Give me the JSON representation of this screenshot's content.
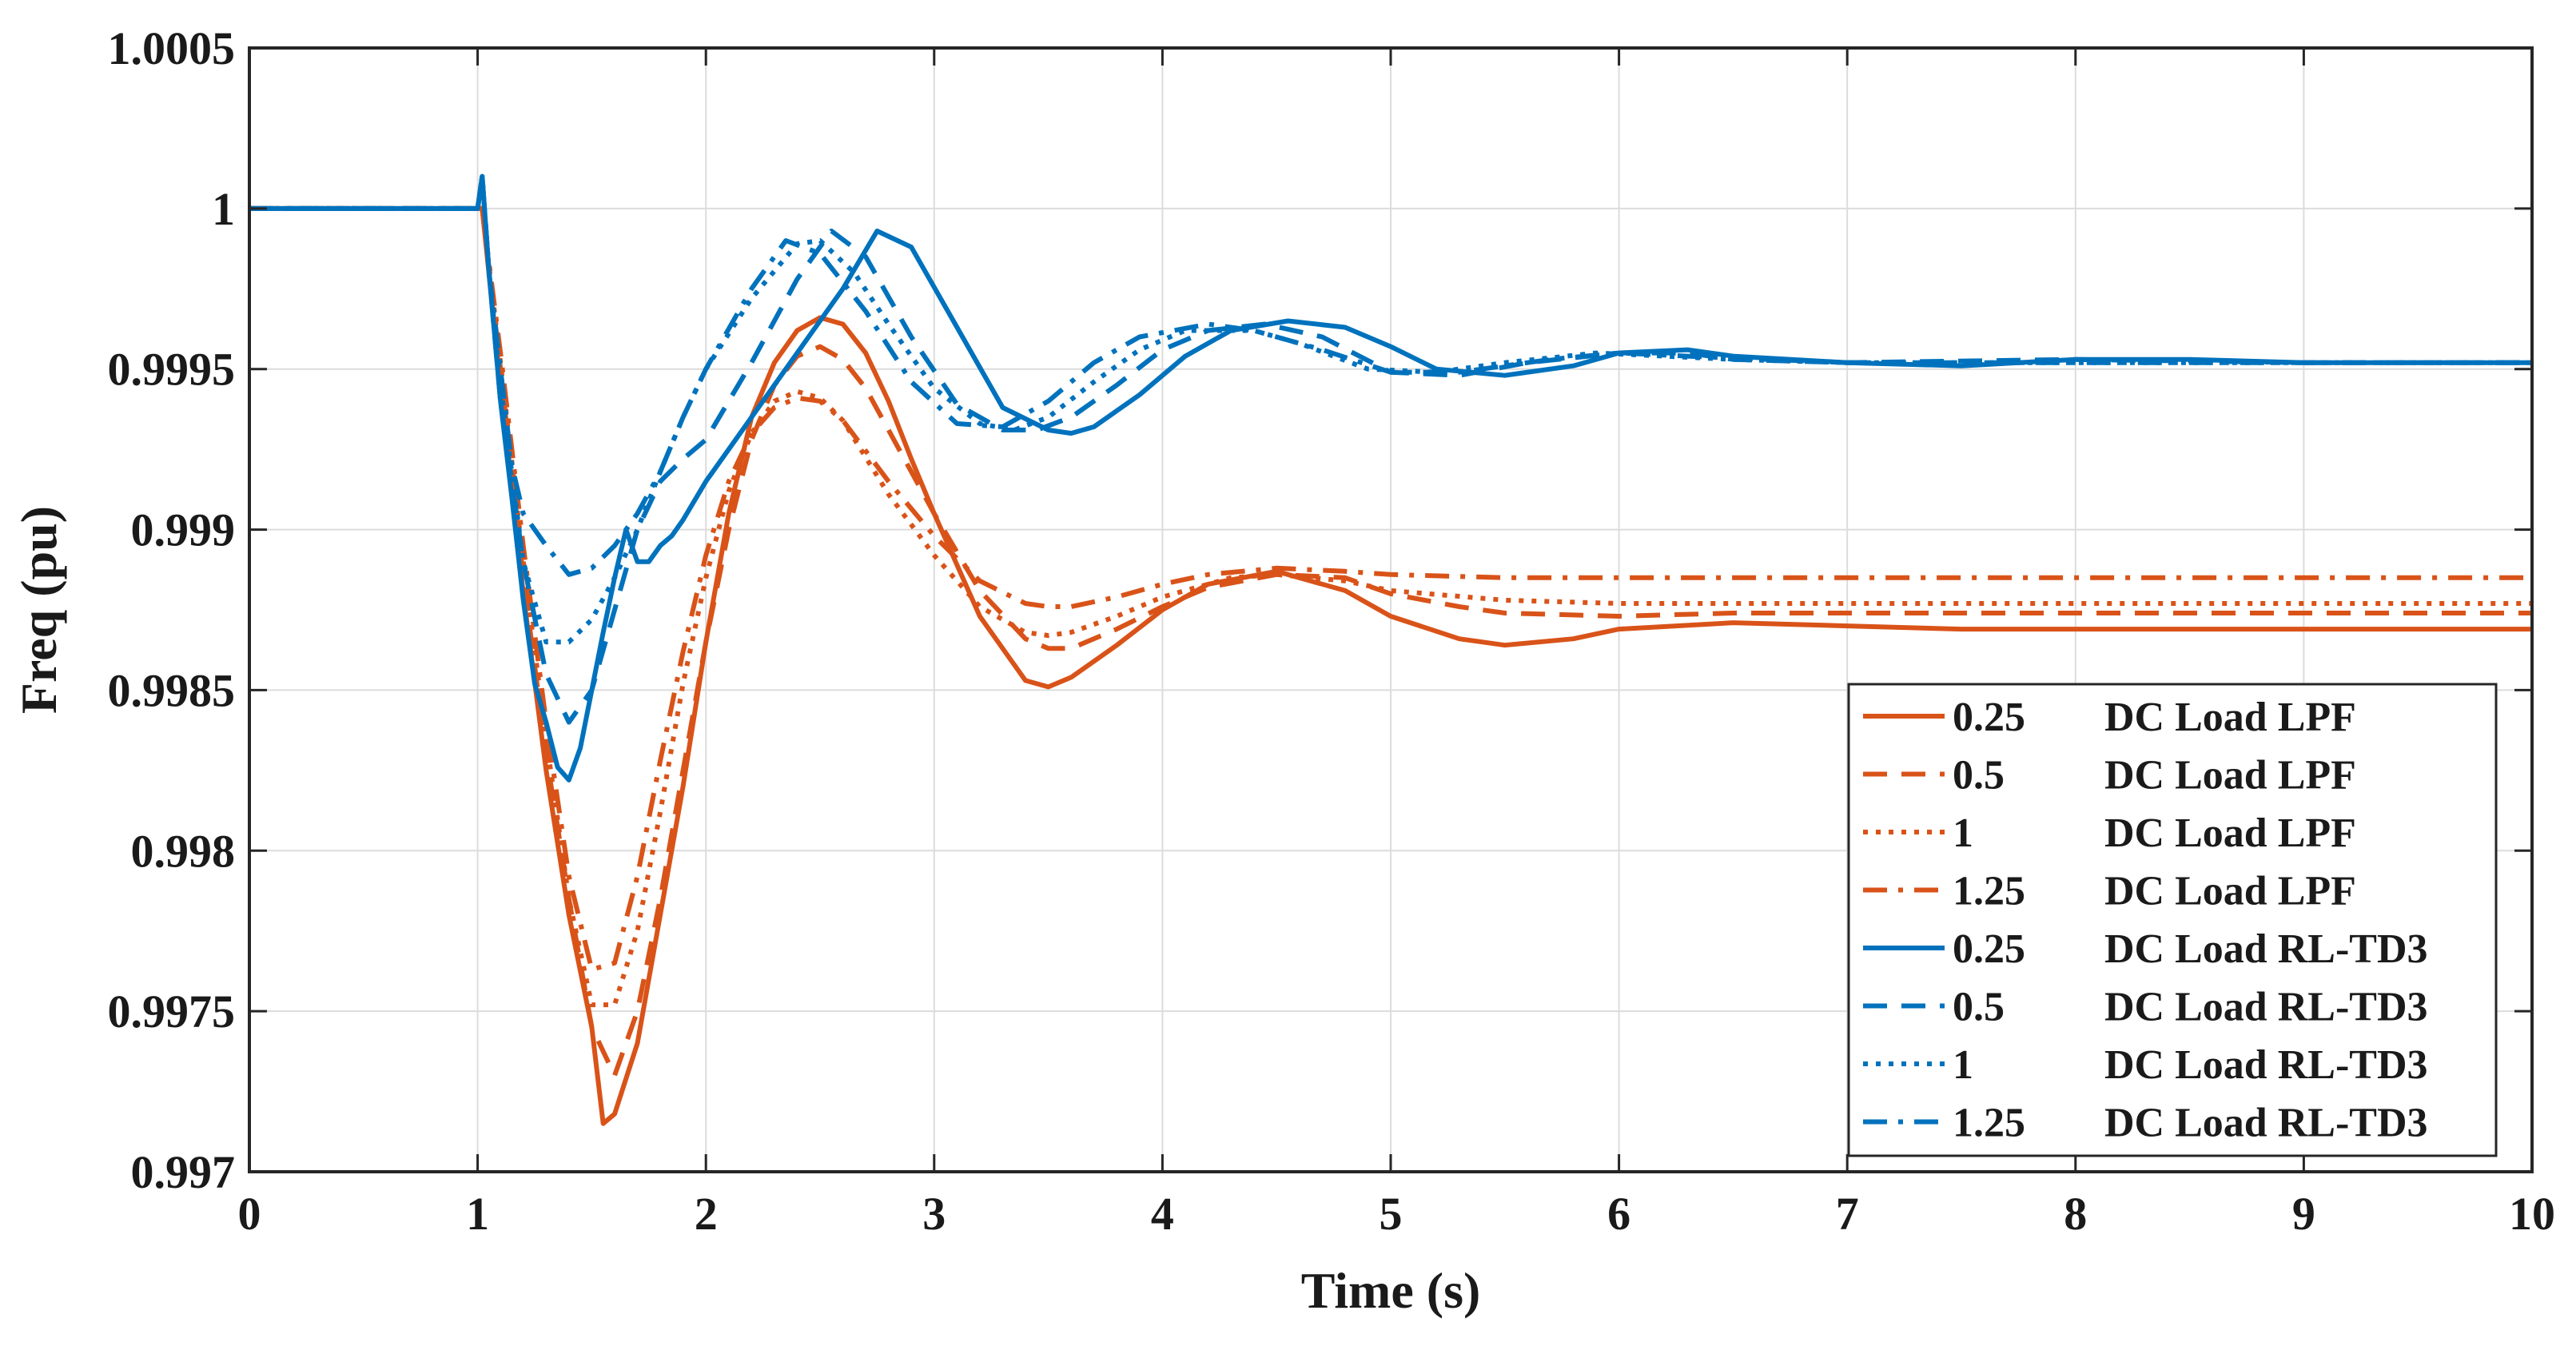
{
  "chart_data": {
    "type": "line",
    "title": "",
    "xlabel": "Time (s)",
    "ylabel": "Freq (pu)",
    "xlim": [
      0,
      10
    ],
    "ylim": [
      0.997,
      1.0005
    ],
    "grid": true,
    "legend_position": "bottom-right",
    "xticks": [
      0,
      1,
      2,
      3,
      4,
      5,
      6,
      7,
      8,
      9,
      10
    ],
    "xtick_labels": [
      "0",
      "1",
      "2",
      "3",
      "4",
      "5",
      "6",
      "7",
      "8",
      "9",
      "10"
    ],
    "yticks": [
      0.997,
      0.9975,
      0.998,
      0.9985,
      0.999,
      0.9995,
      1.0,
      1.0005
    ],
    "ytick_labels": [
      "0.997",
      "0.9975",
      "0.998",
      "0.9985",
      "0.999",
      "0.9995",
      "1",
      "1.0005"
    ],
    "colors": {
      "lpf": "#D95319",
      "rltd3": "#0072BD",
      "axis": "#262626",
      "grid": "#dcdcdc"
    },
    "series": [
      {
        "name": "0.25 DC Load LPF",
        "gain": "0.25",
        "label": "DC Load LPF",
        "style": "solid",
        "color": "#D95319",
        "x": [
          0,
          1.0,
          1.02,
          1.1,
          1.2,
          1.3,
          1.4,
          1.5,
          1.55,
          1.6,
          1.7,
          1.8,
          1.9,
          2.0,
          2.1,
          2.2,
          2.3,
          2.4,
          2.5,
          2.6,
          2.7,
          2.8,
          2.9,
          3.0,
          3.2,
          3.4,
          3.5,
          3.6,
          3.8,
          4.0,
          4.2,
          4.5,
          4.8,
          5.0,
          5.3,
          5.5,
          5.8,
          6.0,
          6.5,
          7.0,
          7.5,
          8.0,
          9.0,
          10.0
        ],
        "y": [
          1.0,
          1.0,
          1.0,
          0.99945,
          0.9988,
          0.99825,
          0.9978,
          0.99745,
          0.99715,
          0.99718,
          0.9974,
          0.9978,
          0.9982,
          0.99865,
          0.99905,
          0.99935,
          0.99952,
          0.99962,
          0.99966,
          0.99964,
          0.99955,
          0.9994,
          0.99922,
          0.99905,
          0.99873,
          0.99853,
          0.99851,
          0.99854,
          0.99864,
          0.99875,
          0.99883,
          0.99887,
          0.99881,
          0.99873,
          0.99866,
          0.99864,
          0.99866,
          0.99869,
          0.99871,
          0.9987,
          0.99869,
          0.99869,
          0.99869,
          0.99869
        ]
      },
      {
        "name": "0.5 DC Load LPF",
        "gain": "0.5",
        "label": "DC Load LPF",
        "style": "dashed",
        "color": "#D95319",
        "x": [
          0,
          1.0,
          1.02,
          1.1,
          1.2,
          1.3,
          1.4,
          1.5,
          1.6,
          1.7,
          1.8,
          1.9,
          2.0,
          2.1,
          2.2,
          2.3,
          2.4,
          2.5,
          2.6,
          2.7,
          2.8,
          3.0,
          3.2,
          3.4,
          3.5,
          3.6,
          3.8,
          4.0,
          4.2,
          4.5,
          4.8,
          5.0,
          5.3,
          5.5,
          6.0,
          6.5,
          7.0,
          8.0,
          9.0,
          10.0
        ],
        "y": [
          1.0,
          1.0,
          1.0,
          0.9995,
          0.99885,
          0.9983,
          0.99785,
          0.99745,
          0.9973,
          0.9975,
          0.99785,
          0.99825,
          0.99865,
          0.999,
          0.99928,
          0.99945,
          0.99954,
          0.99957,
          0.99953,
          0.99944,
          0.99931,
          0.99905,
          0.99881,
          0.99866,
          0.99863,
          0.99863,
          0.99869,
          0.99876,
          0.99882,
          0.99886,
          0.99885,
          0.9988,
          0.99876,
          0.99874,
          0.99873,
          0.99874,
          0.99874,
          0.99874,
          0.99874,
          0.99874
        ]
      },
      {
        "name": "1 DC Load LPF",
        "gain": "1",
        "label": "DC Load LPF",
        "style": "dotted",
        "color": "#D95319",
        "x": [
          0,
          1.0,
          1.02,
          1.1,
          1.2,
          1.3,
          1.4,
          1.5,
          1.6,
          1.7,
          1.8,
          1.9,
          2.0,
          2.1,
          2.2,
          2.3,
          2.4,
          2.5,
          2.6,
          2.8,
          3.0,
          3.2,
          3.4,
          3.5,
          3.6,
          3.8,
          4.0,
          4.3,
          4.5,
          4.8,
          5.0,
          5.5,
          6.0,
          7.0,
          8.0,
          9.0,
          10.0
        ],
        "y": [
          1.0,
          1.0,
          1.0,
          0.99952,
          0.9989,
          0.99835,
          0.99785,
          0.99752,
          0.99752,
          0.99775,
          0.99812,
          0.99852,
          0.99885,
          0.99912,
          0.9993,
          0.9994,
          0.99943,
          0.99941,
          0.99934,
          0.99911,
          0.99892,
          0.99876,
          0.99868,
          0.99867,
          0.99868,
          0.99873,
          0.99879,
          0.99885,
          0.99886,
          0.99884,
          0.99881,
          0.99878,
          0.99877,
          0.99877,
          0.99877,
          0.99877,
          0.99877
        ]
      },
      {
        "name": "1.25 DC Load LPF",
        "gain": "1.25",
        "label": "DC Load LPF",
        "style": "dashdot",
        "color": "#D95319",
        "x": [
          0,
          1.0,
          1.02,
          1.1,
          1.2,
          1.3,
          1.4,
          1.5,
          1.6,
          1.7,
          1.8,
          1.9,
          2.0,
          2.1,
          2.2,
          2.3,
          2.4,
          2.5,
          2.6,
          2.8,
          3.0,
          3.2,
          3.4,
          3.5,
          3.6,
          3.8,
          4.0,
          4.2,
          4.5,
          4.8,
          5.0,
          5.5,
          6.0,
          7.0,
          8.0,
          9.0,
          10.0
        ],
        "y": [
          1.0,
          1.0,
          1.0,
          0.99955,
          0.99895,
          0.9984,
          0.99792,
          0.99763,
          0.99765,
          0.99792,
          0.99828,
          0.99862,
          0.99892,
          0.99915,
          0.9993,
          0.99938,
          0.99941,
          0.9994,
          0.99934,
          0.99915,
          0.99898,
          0.99884,
          0.99877,
          0.99876,
          0.99876,
          0.99879,
          0.99883,
          0.99886,
          0.99888,
          0.99887,
          0.99886,
          0.99885,
          0.99885,
          0.99885,
          0.99885,
          0.99885,
          0.99885
        ]
      },
      {
        "name": "0.25 DC Load RL-TD3",
        "gain": "0.25",
        "label": "DC Load RL-TD3",
        "style": "solid",
        "color": "#0072BD",
        "x": [
          0,
          1.0,
          1.02,
          1.05,
          1.1,
          1.15,
          1.2,
          1.25,
          1.3,
          1.35,
          1.4,
          1.45,
          1.5,
          1.55,
          1.6,
          1.65,
          1.7,
          1.75,
          1.8,
          1.85,
          1.9,
          2.0,
          2.2,
          2.4,
          2.6,
          2.75,
          2.9,
          3.1,
          3.3,
          3.5,
          3.6,
          3.7,
          3.9,
          4.1,
          4.3,
          4.55,
          4.8,
          5.0,
          5.2,
          5.5,
          5.8,
          6.0,
          6.3,
          6.5,
          7.0,
          7.5,
          8.0,
          8.5,
          9.0,
          10.0
        ],
        "y": [
          1.0,
          1.0,
          1.0001,
          0.9998,
          0.9994,
          0.9991,
          0.99878,
          0.99852,
          0.9984,
          0.99826,
          0.99822,
          0.99832,
          0.9985,
          0.99868,
          0.99885,
          0.999,
          0.9989,
          0.9989,
          0.99895,
          0.99898,
          0.99903,
          0.99915,
          0.99935,
          0.99955,
          0.99975,
          0.99993,
          0.99988,
          0.99963,
          0.99938,
          0.99931,
          0.9993,
          0.99932,
          0.99942,
          0.99954,
          0.99962,
          0.99965,
          0.99963,
          0.99957,
          0.9995,
          0.99948,
          0.99951,
          0.99955,
          0.99956,
          0.99954,
          0.99952,
          0.99951,
          0.99953,
          0.99953,
          0.99952,
          0.99952
        ]
      },
      {
        "name": "0.5 DC Load RL-TD3",
        "gain": "0.5",
        "label": "DC Load RL-TD3",
        "style": "dashed",
        "color": "#0072BD",
        "x": [
          0,
          1.0,
          1.02,
          1.05,
          1.1,
          1.2,
          1.3,
          1.4,
          1.5,
          1.6,
          1.7,
          1.8,
          1.9,
          2.0,
          2.2,
          2.4,
          2.55,
          2.7,
          2.9,
          3.1,
          3.3,
          3.45,
          3.6,
          3.8,
          4.0,
          4.2,
          4.45,
          4.7,
          5.0,
          5.3,
          5.6,
          6.0,
          6.3,
          6.5,
          7.0,
          8.0,
          9.0,
          10.0
        ],
        "y": [
          1.0,
          1.0,
          1.0001,
          0.9998,
          0.9994,
          0.9989,
          0.99855,
          0.9984,
          0.9985,
          0.99875,
          0.999,
          0.99915,
          0.99922,
          0.99928,
          0.99952,
          0.99978,
          0.99993,
          0.99985,
          0.9996,
          0.99939,
          0.99931,
          0.99931,
          0.99935,
          0.99945,
          0.99956,
          0.99962,
          0.99964,
          0.9996,
          0.99949,
          0.99948,
          0.99952,
          0.99955,
          0.99955,
          0.99953,
          0.99952,
          0.99953,
          0.99952,
          0.99952
        ]
      },
      {
        "name": "1 DC Load RL-TD3",
        "gain": "1",
        "label": "DC Load RL-TD3",
        "style": "dotted",
        "color": "#0072BD",
        "x": [
          0,
          1.0,
          1.02,
          1.05,
          1.1,
          1.2,
          1.3,
          1.4,
          1.5,
          1.6,
          1.7,
          1.8,
          1.9,
          2.0,
          2.2,
          2.4,
          2.5,
          2.65,
          2.8,
          3.0,
          3.2,
          3.35,
          3.5,
          3.7,
          3.9,
          4.1,
          4.4,
          4.6,
          4.9,
          5.2,
          5.5,
          5.9,
          6.2,
          6.5,
          7.0,
          8.0,
          9.0,
          10.0
        ],
        "y": [
          1.0,
          1.0,
          1.0001,
          0.9998,
          0.99945,
          0.9989,
          0.99865,
          0.99865,
          0.99872,
          0.99885,
          0.999,
          0.99918,
          0.99935,
          0.9995,
          0.99972,
          0.99989,
          0.9999,
          0.9998,
          0.99964,
          0.99944,
          0.99933,
          0.99931,
          0.99935,
          0.99946,
          0.99956,
          0.99962,
          0.99962,
          0.99958,
          0.9995,
          0.99949,
          0.99952,
          0.99955,
          0.99954,
          0.99953,
          0.99952,
          0.99952,
          0.99952,
          0.99952
        ]
      },
      {
        "name": "1.25 DC Load RL-TD3",
        "gain": "1.25",
        "label": "DC Load RL-TD3",
        "style": "dashdot",
        "color": "#0072BD",
        "x": [
          0,
          1.0,
          1.02,
          1.05,
          1.1,
          1.15,
          1.2,
          1.3,
          1.4,
          1.5,
          1.6,
          1.7,
          1.8,
          1.9,
          2.0,
          2.2,
          2.35,
          2.5,
          2.7,
          2.9,
          3.1,
          3.3,
          3.5,
          3.7,
          3.9,
          4.2,
          4.4,
          4.7,
          5.0,
          5.3,
          5.7,
          6.0,
          6.3,
          7.0,
          8.0,
          9.0,
          10.0
        ],
        "y": [
          1.0,
          1.0,
          1.0001,
          0.9998,
          0.9995,
          0.9992,
          0.99905,
          0.99895,
          0.99886,
          0.99888,
          0.99895,
          0.99905,
          0.99918,
          0.99935,
          0.9995,
          0.99975,
          0.9999,
          0.99986,
          0.99968,
          0.99946,
          0.99933,
          0.99932,
          0.9994,
          0.99952,
          0.9996,
          0.99964,
          0.99962,
          0.99956,
          0.99949,
          0.99949,
          0.99953,
          0.99955,
          0.99954,
          0.99952,
          0.99952,
          0.99952,
          0.99952
        ]
      }
    ]
  }
}
